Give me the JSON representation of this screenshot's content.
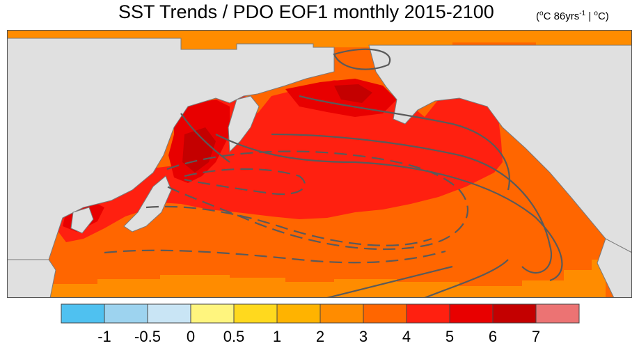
{
  "title": "SST Trends / PDO EOF1 monthly 2015-2100",
  "units": {
    "open": "(",
    "deg1": "o",
    "c1": "C 86yrs",
    "exp": "-1",
    "sep": " | ",
    "deg2": "o",
    "c2": "C)"
  },
  "colors": {
    "land": "#e0e0e0",
    "coast": "#7a7a7a",
    "contour": "#5a5a5a",
    "frame": "#555555"
  },
  "map": {
    "region": "North Pacific",
    "fill_levels": [
      "2-3",
      "3-4",
      "4-5",
      "5-6",
      "6-7"
    ],
    "contours": "solid = positive PDO EOF1 loading, dashed = negative"
  },
  "colorbar": {
    "colors": [
      "#4fc1f0",
      "#9dd3ef",
      "#c9e5f5",
      "#fff57e",
      "#ffd91e",
      "#ffb300",
      "#ff8c00",
      "#ff6600",
      "#ff2010",
      "#e80000",
      "#c40000",
      "#ec7373"
    ],
    "labels": [
      "-1",
      "-0.5",
      "0",
      "0.5",
      "1",
      "2",
      "3",
      "4",
      "5",
      "6",
      "7"
    ]
  }
}
